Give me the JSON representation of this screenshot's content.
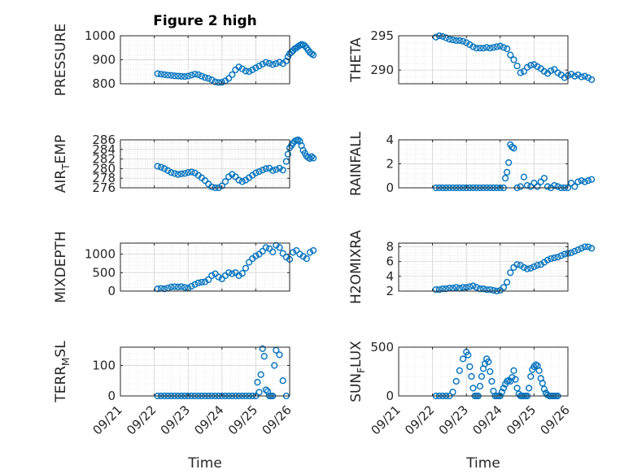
{
  "figure": {
    "title": "Figure 2 high"
  },
  "colors": {
    "marker": "#0072BD",
    "grid": "#d9d9d9",
    "axes": "#262626"
  },
  "x_ticks": [
    "09/21",
    "09/22",
    "09/23",
    "09/24",
    "09/25",
    "09/26"
  ],
  "chart_data": [
    {
      "type": "scatter",
      "id": "pressure",
      "ylabel": "PRESSURE",
      "ylim": [
        800,
        1000
      ],
      "yticks": [
        800,
        900,
        1000
      ],
      "series": [
        {
          "x": [
            1.1,
            1.2,
            1.3,
            1.4,
            1.5,
            1.6,
            1.7,
            1.8,
            1.9,
            2.0,
            2.1,
            2.2,
            2.3,
            2.4,
            2.5,
            2.6,
            2.7,
            2.8,
            2.9,
            3.0,
            3.1,
            3.2,
            3.3,
            3.4,
            3.5,
            3.6,
            3.7,
            3.8,
            3.9,
            4.0,
            4.1,
            4.2,
            4.3,
            4.4,
            4.5,
            4.6,
            4.7,
            4.8,
            4.9,
            4.95,
            5.0,
            5.05,
            5.1,
            5.15,
            5.2,
            5.25,
            5.3,
            5.35,
            5.4,
            5.45,
            5.5,
            5.55,
            5.6,
            5.65,
            5.7
          ],
          "y": [
            842,
            840,
            838,
            836,
            835,
            833,
            832,
            831,
            830,
            832,
            836,
            840,
            838,
            832,
            826,
            822,
            816,
            808,
            805,
            806,
            812,
            822,
            838,
            858,
            870,
            862,
            853,
            851,
            858,
            866,
            874,
            882,
            889,
            885,
            880,
            884,
            890,
            884,
            895,
            912,
            925,
            932,
            938,
            946,
            950,
            955,
            960,
            964,
            962,
            958,
            950,
            940,
            930,
            925,
            920
          ]
        }
      ]
    },
    {
      "type": "scatter",
      "id": "theta",
      "ylabel": "THETA",
      "ylim": [
        288,
        295
      ],
      "yticks": [
        290,
        295
      ],
      "series": [
        {
          "x": [
            1.1,
            1.2,
            1.3,
            1.4,
            1.5,
            1.6,
            1.7,
            1.8,
            1.9,
            2.0,
            2.1,
            2.2,
            2.3,
            2.4,
            2.5,
            2.6,
            2.7,
            2.8,
            2.9,
            3.0,
            3.1,
            3.2,
            3.3,
            3.4,
            3.5,
            3.6,
            3.7,
            3.8,
            3.9,
            4.0,
            4.1,
            4.2,
            4.3,
            4.4,
            4.5,
            4.6,
            4.7,
            4.8,
            4.9,
            5.0,
            5.1,
            5.2,
            5.3,
            5.4,
            5.5,
            5.6,
            5.7
          ],
          "y": [
            294.8,
            295.0,
            294.9,
            294.7,
            294.5,
            294.4,
            294.3,
            294.3,
            294.2,
            294.0,
            293.7,
            293.4,
            293.2,
            293.2,
            293.2,
            293.3,
            293.2,
            293.3,
            293.4,
            293.5,
            293.3,
            293.1,
            292.2,
            291.5,
            290.6,
            289.6,
            289.8,
            290.4,
            290.7,
            290.8,
            290.5,
            290.2,
            289.8,
            289.5,
            289.9,
            290.1,
            289.6,
            289.3,
            288.9,
            289.2,
            289.4,
            289.1,
            289.3,
            289.0,
            289.1,
            288.9,
            288.6
          ]
        }
      ]
    },
    {
      "type": "scatter",
      "id": "air_temp",
      "ylabel": "AIR_TEMP",
      "ylim": [
        276,
        286
      ],
      "yticks": [
        276,
        278,
        280,
        282,
        284,
        286
      ],
      "series": [
        {
          "x": [
            1.1,
            1.2,
            1.3,
            1.4,
            1.5,
            1.6,
            1.7,
            1.8,
            1.9,
            2.0,
            2.1,
            2.2,
            2.3,
            2.4,
            2.5,
            2.6,
            2.7,
            2.8,
            2.9,
            3.0,
            3.1,
            3.2,
            3.3,
            3.4,
            3.5,
            3.6,
            3.7,
            3.8,
            3.9,
            4.0,
            4.1,
            4.2,
            4.3,
            4.4,
            4.5,
            4.6,
            4.7,
            4.8,
            4.9,
            4.95,
            5.0,
            5.05,
            5.1,
            5.15,
            5.2,
            5.25,
            5.3,
            5.35,
            5.4,
            5.45,
            5.5,
            5.55,
            5.6,
            5.65,
            5.7
          ],
          "y": [
            280.5,
            280.3,
            280.0,
            279.6,
            279.2,
            279.0,
            278.8,
            278.9,
            279.0,
            279.2,
            279.3,
            279.1,
            278.6,
            278.1,
            277.5,
            276.8,
            276.2,
            276.0,
            276.0,
            276.4,
            277.3,
            278.3,
            278.8,
            278.3,
            277.6,
            277.3,
            277.6,
            278.1,
            278.6,
            279.1,
            279.4,
            279.7,
            280.0,
            280.1,
            279.6,
            279.8,
            280.1,
            279.7,
            281.5,
            283.0,
            284.3,
            284.8,
            285.3,
            285.7,
            285.9,
            286.0,
            285.7,
            284.8,
            283.8,
            283.2,
            282.6,
            282.3,
            282.1,
            282.5,
            282.2
          ]
        }
      ]
    },
    {
      "type": "scatter",
      "id": "rainfall",
      "ylabel": "RAINFALL",
      "ylim": [
        0,
        4
      ],
      "yticks": [
        0,
        2,
        4
      ],
      "series": [
        {
          "x": [
            1.1,
            1.2,
            1.3,
            1.4,
            1.5,
            1.6,
            1.7,
            1.8,
            1.9,
            2.0,
            2.1,
            2.2,
            2.3,
            2.4,
            2.5,
            2.6,
            2.7,
            2.8,
            2.9,
            3.0,
            3.1,
            3.15,
            3.2,
            3.25,
            3.3,
            3.35,
            3.4,
            3.5,
            3.6,
            3.7,
            3.8,
            3.9,
            4.0,
            4.1,
            4.2,
            4.3,
            4.4,
            4.5,
            4.6,
            4.7,
            4.8,
            4.9,
            5.0,
            5.1,
            5.2,
            5.3,
            5.4,
            5.5,
            5.6,
            5.7
          ],
          "y": [
            0,
            0,
            0,
            0,
            0,
            0,
            0,
            0,
            0,
            0,
            0,
            0,
            0,
            0,
            0,
            0,
            0,
            0,
            0,
            0,
            0,
            0.8,
            1.3,
            2.1,
            3.6,
            3.4,
            3.3,
            0,
            0.1,
            0.9,
            0.2,
            0.1,
            0.4,
            0.1,
            0.5,
            0.8,
            0.1,
            0,
            0.2,
            0.1,
            0,
            0,
            0,
            0.4,
            0.1,
            0.5,
            0.6,
            0.5,
            0.6,
            0.7
          ]
        }
      ]
    },
    {
      "type": "scatter",
      "id": "mixdepth",
      "ylabel": "MIXDEPTH",
      "ylim": [
        0,
        1300
      ],
      "yticks": [
        0,
        500,
        1000
      ],
      "series": [
        {
          "x": [
            1.1,
            1.2,
            1.3,
            1.4,
            1.5,
            1.6,
            1.7,
            1.8,
            1.9,
            2.0,
            2.1,
            2.2,
            2.3,
            2.4,
            2.5,
            2.6,
            2.7,
            2.8,
            2.9,
            3.0,
            3.1,
            3.2,
            3.3,
            3.4,
            3.5,
            3.6,
            3.7,
            3.8,
            3.9,
            4.0,
            4.1,
            4.2,
            4.3,
            4.4,
            4.5,
            4.6,
            4.7,
            4.8,
            4.9,
            5.0,
            5.1,
            5.2,
            5.3,
            5.4,
            5.5,
            5.6,
            5.7
          ],
          "y": [
            60,
            70,
            60,
            80,
            110,
            120,
            110,
            120,
            100,
            80,
            130,
            180,
            220,
            240,
            250,
            310,
            420,
            470,
            380,
            330,
            420,
            500,
            470,
            500,
            420,
            480,
            620,
            780,
            880,
            950,
            1000,
            1080,
            1180,
            1150,
            1060,
            1240,
            1180,
            1020,
            920,
            860,
            1050,
            1100,
            1000,
            940,
            880,
            1050,
            1100
          ]
        }
      ]
    },
    {
      "type": "scatter",
      "id": "h2omixra",
      "ylabel": "H2OMIXRA",
      "ylim": [
        2,
        8.5
      ],
      "yticks": [
        2,
        4,
        6,
        8
      ],
      "series": [
        {
          "x": [
            1.1,
            1.2,
            1.3,
            1.4,
            1.5,
            1.6,
            1.7,
            1.8,
            1.9,
            2.0,
            2.1,
            2.2,
            2.3,
            2.4,
            2.5,
            2.6,
            2.7,
            2.8,
            2.9,
            3.0,
            3.1,
            3.2,
            3.3,
            3.4,
            3.5,
            3.6,
            3.7,
            3.8,
            3.9,
            4.0,
            4.1,
            4.2,
            4.3,
            4.4,
            4.5,
            4.6,
            4.7,
            4.8,
            4.9,
            5.0,
            5.1,
            5.2,
            5.3,
            5.4,
            5.5,
            5.6,
            5.7
          ],
          "y": [
            2.2,
            2.2,
            2.3,
            2.3,
            2.4,
            2.4,
            2.5,
            2.4,
            2.5,
            2.5,
            2.6,
            2.7,
            2.5,
            2.3,
            2.3,
            2.2,
            2.2,
            2.1,
            2.0,
            2.1,
            2.5,
            3.2,
            4.5,
            5.2,
            5.6,
            5.5,
            5.2,
            5.0,
            5.1,
            5.3,
            5.5,
            5.6,
            5.9,
            6.2,
            6.4,
            6.5,
            6.6,
            6.8,
            7.0,
            7.1,
            7.2,
            7.4,
            7.6,
            7.8,
            8.0,
            8.0,
            7.8
          ]
        }
      ]
    },
    {
      "type": "scatter",
      "id": "terr_msl",
      "ylabel": "TERR_MSL",
      "ylim": [
        0,
        160
      ],
      "yticks": [
        0,
        100
      ],
      "series": [
        {
          "x": [
            1.1,
            1.2,
            1.3,
            1.4,
            1.5,
            1.6,
            1.7,
            1.8,
            1.9,
            2.0,
            2.1,
            2.2,
            2.3,
            2.4,
            2.5,
            2.6,
            2.7,
            2.8,
            2.9,
            3.0,
            3.1,
            3.2,
            3.3,
            3.4,
            3.5,
            3.6,
            3.7,
            3.8,
            3.9,
            4.0,
            4.05,
            4.1,
            4.15,
            4.2,
            4.25,
            4.3,
            4.35,
            4.4,
            4.45,
            4.5,
            4.55,
            4.6,
            4.7,
            4.8,
            4.9
          ],
          "y": [
            0,
            0,
            0,
            0,
            0,
            0,
            0,
            0,
            0,
            0,
            0,
            0,
            0,
            0,
            0,
            0,
            0,
            0,
            0,
            0,
            0,
            0,
            0,
            0,
            0,
            0,
            0,
            0,
            0,
            0,
            45,
            12,
            70,
            155,
            130,
            20,
            15,
            0,
            0,
            0,
            100,
            150,
            135,
            50,
            0
          ]
        }
      ]
    },
    {
      "type": "scatter",
      "id": "sun_flux",
      "ylabel": "SUN_FLUX",
      "ylim": [
        0,
        500
      ],
      "yticks": [
        0,
        500
      ],
      "series": [
        {
          "x": [
            1.1,
            1.2,
            1.3,
            1.4,
            1.5,
            1.6,
            1.7,
            1.8,
            1.9,
            2.0,
            2.05,
            2.1,
            2.15,
            2.2,
            2.25,
            2.3,
            2.35,
            2.4,
            2.45,
            2.5,
            2.55,
            2.6,
            2.65,
            2.7,
            2.75,
            2.8,
            2.85,
            2.9,
            2.95,
            3.0,
            3.05,
            3.1,
            3.15,
            3.2,
            3.25,
            3.3,
            3.35,
            3.4,
            3.45,
            3.5,
            3.55,
            3.6,
            3.65,
            3.7,
            3.75,
            3.8,
            3.85,
            3.9,
            3.95,
            4.0,
            4.05,
            4.1,
            4.15,
            4.2,
            4.25,
            4.3,
            4.35,
            4.4,
            4.45,
            4.5,
            4.55,
            4.6,
            4.65,
            4.7
          ],
          "y": [
            0,
            0,
            0,
            0,
            0,
            40,
            150,
            260,
            380,
            450,
            420,
            300,
            200,
            80,
            0,
            0,
            0,
            100,
            200,
            280,
            330,
            380,
            350,
            250,
            150,
            50,
            0,
            0,
            0,
            0,
            40,
            80,
            120,
            150,
            160,
            150,
            190,
            260,
            170,
            80,
            20,
            0,
            0,
            0,
            0,
            0,
            80,
            200,
            270,
            300,
            320,
            310,
            260,
            180,
            130,
            70,
            30,
            10,
            0,
            0,
            0,
            0,
            0,
            0
          ]
        }
      ]
    }
  ],
  "x_axis": {
    "label": "Time",
    "range": [
      "09/21",
      "09/26"
    ]
  }
}
